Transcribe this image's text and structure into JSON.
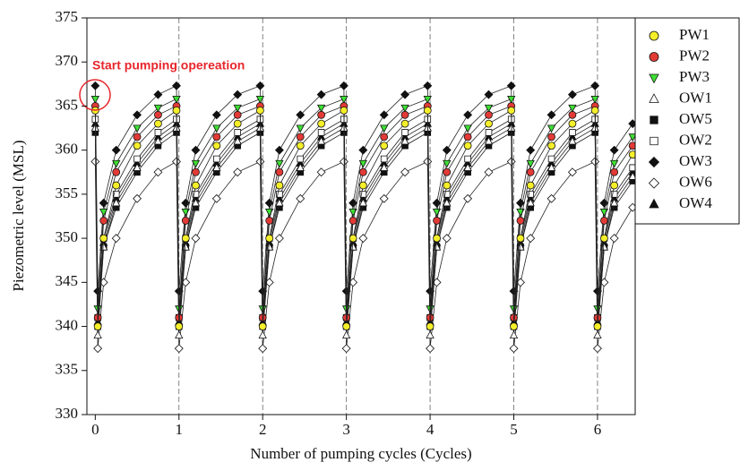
{
  "chart_data": {
    "type": "line",
    "x_label": "Number of pumping cycles (Cycles)",
    "y_label": "Piezometric level (MSL)",
    "annotation": "Start pumping opereation",
    "xlim": [
      -0.1,
      6.45
    ],
    "ylim": [
      330,
      375
    ],
    "xticks": [
      0,
      1,
      2,
      3,
      4,
      5,
      6
    ],
    "yticks": [
      330,
      335,
      340,
      345,
      350,
      355,
      360,
      365,
      370,
      375
    ],
    "x": [
      0,
      0.03,
      0.1,
      0.25,
      0.5,
      0.75,
      0.97,
      1,
      1.08,
      1.2,
      1.45,
      1.7,
      1.97,
      2,
      2.08,
      2.2,
      2.45,
      2.7,
      2.97,
      3,
      3.08,
      3.2,
      3.45,
      3.7,
      3.97,
      4,
      4.08,
      4.2,
      4.45,
      4.7,
      4.97,
      5,
      5.08,
      5.2,
      5.45,
      5.7,
      5.97,
      6,
      6.08,
      6.2,
      6.42
    ],
    "series": [
      {
        "name": "PW1",
        "color": "#f5ef2a",
        "marker": "circle",
        "values": [
          364.5,
          340,
          350,
          356,
          360.5,
          363,
          364.5,
          340,
          350,
          356,
          360.5,
          363,
          364.5,
          340,
          350,
          356,
          360.5,
          363,
          364.5,
          340,
          350,
          356,
          360.5,
          363,
          364.5,
          340,
          350,
          356,
          360.5,
          363,
          364.5,
          340,
          350,
          356,
          360.5,
          363,
          364.5,
          340,
          350,
          356,
          359.5
        ]
      },
      {
        "name": "PW2",
        "color": "#e23a36",
        "marker": "circle",
        "values": [
          365,
          341,
          352,
          357.5,
          361.5,
          364,
          365,
          341,
          352,
          357.5,
          361.5,
          364,
          365,
          341,
          352,
          357.5,
          361.5,
          364,
          365,
          341,
          352,
          357.5,
          361.5,
          364,
          365,
          341,
          352,
          357.5,
          361.5,
          364,
          365,
          341,
          352,
          357.5,
          361.5,
          364,
          365,
          341,
          352,
          357.5,
          360.5
        ]
      },
      {
        "name": "PW3",
        "color": "#3ee034",
        "marker": "triangle-down",
        "values": [
          365.8,
          342,
          353,
          358.5,
          362.5,
          364.8,
          365.8,
          342,
          353,
          358.5,
          362.5,
          364.8,
          365.8,
          342,
          353,
          358.5,
          362.5,
          364.8,
          365.8,
          342,
          353,
          358.5,
          362.5,
          364.8,
          365.8,
          342,
          353,
          358.5,
          362.5,
          364.8,
          365.8,
          342,
          353,
          358.5,
          362.5,
          364.8,
          365.8,
          342,
          353,
          358.5,
          361.5
        ]
      },
      {
        "name": "OW1",
        "color": "#ffffff",
        "marker": "triangle-up",
        "values": [
          362.5,
          339,
          349,
          354,
          358,
          361,
          362.5,
          339,
          349,
          354,
          358,
          361,
          362.5,
          339,
          349,
          354,
          358,
          361,
          362.5,
          339,
          349,
          354,
          358,
          361,
          362.5,
          339,
          349,
          354,
          358,
          361,
          362.5,
          339,
          349,
          354,
          358,
          361,
          362.5,
          339,
          349,
          354,
          357
        ]
      },
      {
        "name": "OW5",
        "color": "#111111",
        "marker": "square",
        "values": [
          362,
          340,
          349,
          353.5,
          357.5,
          360.5,
          362,
          340,
          349,
          353.5,
          357.5,
          360.5,
          362,
          340,
          349,
          353.5,
          357.5,
          360.5,
          362,
          340,
          349,
          353.5,
          357.5,
          360.5,
          362,
          340,
          349,
          353.5,
          357.5,
          360.5,
          362,
          340,
          349,
          353.5,
          357.5,
          360.5,
          362,
          340,
          349,
          353.5,
          356.5
        ]
      },
      {
        "name": "OW2",
        "color": "#ffffff",
        "marker": "square",
        "values": [
          363.5,
          341,
          350,
          355,
          359,
          362,
          363.5,
          341,
          350,
          355,
          359,
          362,
          363.5,
          341,
          350,
          355,
          359,
          362,
          363.5,
          341,
          350,
          355,
          359,
          362,
          363.5,
          341,
          350,
          355,
          359,
          362,
          363.5,
          341,
          350,
          355,
          359,
          362,
          363.5,
          341,
          350,
          355,
          358
        ]
      },
      {
        "name": "OW3",
        "color": "#111111",
        "marker": "diamond",
        "values": [
          367.3,
          344,
          354,
          360,
          364,
          366.3,
          367.3,
          344,
          354,
          360,
          364,
          366.3,
          367.3,
          344,
          354,
          360,
          364,
          366.3,
          367.3,
          344,
          354,
          360,
          364,
          366.3,
          367.3,
          344,
          354,
          360,
          364,
          366.3,
          367.3,
          344,
          354,
          360,
          364,
          366.3,
          367.3,
          344,
          354,
          360,
          363
        ]
      },
      {
        "name": "OW6",
        "color": "#ffffff",
        "marker": "diamond",
        "values": [
          358.7,
          337.5,
          345,
          350,
          354.5,
          357.5,
          358.7,
          337.5,
          345,
          350,
          354.5,
          357.5,
          358.7,
          337.5,
          345,
          350,
          354.5,
          357.5,
          358.7,
          337.5,
          345,
          350,
          354.5,
          357.5,
          358.7,
          337.5,
          345,
          350,
          354.5,
          357.5,
          358.7,
          337.5,
          345,
          350,
          354.5,
          357.5,
          358.7,
          337.5,
          345,
          350,
          353.5
        ]
      },
      {
        "name": "OW4",
        "color": "#111111",
        "marker": "triangle-up",
        "values": [
          363,
          340.5,
          349.5,
          354.5,
          358.5,
          361.5,
          363,
          340.5,
          349.5,
          354.5,
          358.5,
          361.5,
          363,
          340.5,
          349.5,
          354.5,
          358.5,
          361.5,
          363,
          340.5,
          349.5,
          354.5,
          358.5,
          361.5,
          363,
          340.5,
          349.5,
          354.5,
          358.5,
          361.5,
          363,
          340.5,
          349.5,
          354.5,
          358.5,
          361.5,
          363,
          340.5,
          349.5,
          354.5,
          357.5
        ]
      }
    ]
  }
}
